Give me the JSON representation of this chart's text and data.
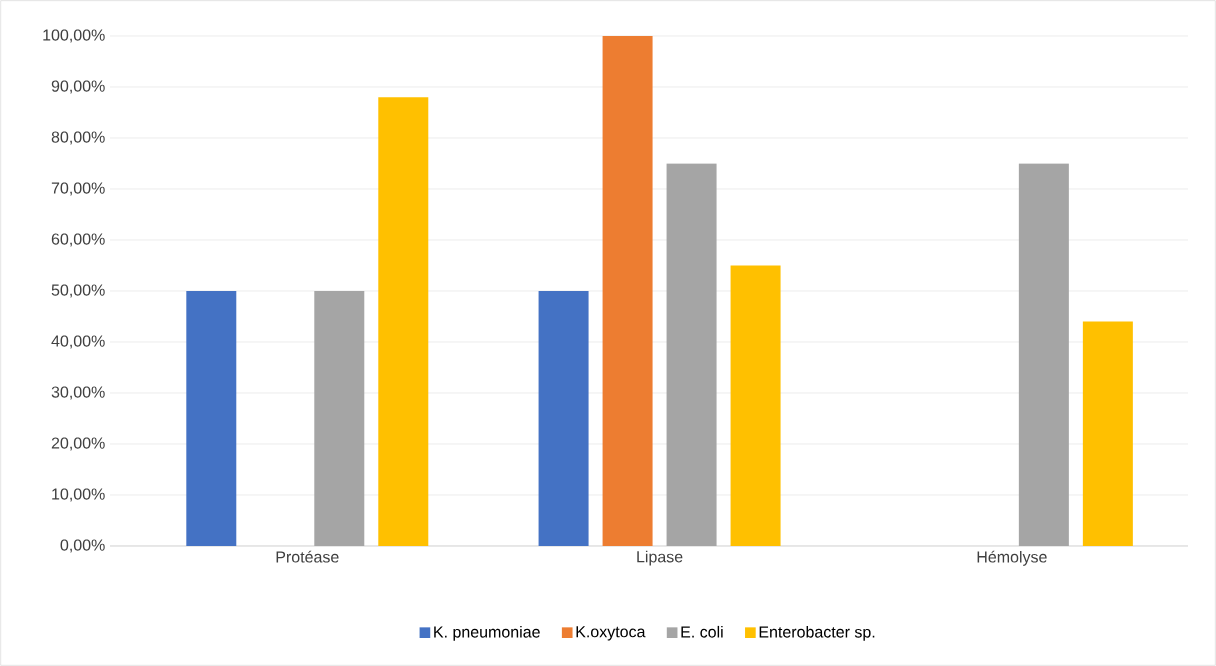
{
  "chart_data": {
    "type": "bar",
    "categories": [
      "Protéase",
      "Lipase",
      "Hémolyse"
    ],
    "series": [
      {
        "name": "K. pneumoniae",
        "color": "#4472c4",
        "values": [
          50,
          50,
          0
        ]
      },
      {
        "name": "K.oxytoca",
        "color": "#ed7d31",
        "values": [
          0,
          100,
          0
        ]
      },
      {
        "name": "E. coli",
        "color": "#a5a5a5",
        "values": [
          50,
          75,
          75
        ]
      },
      {
        "name": "Enterobacter sp.",
        "color": "#ffc000",
        "values": [
          88,
          55,
          44
        ]
      }
    ],
    "ylim": [
      0,
      100
    ],
    "yticks": [
      {
        "value": 0,
        "label": "0,00%"
      },
      {
        "value": 10,
        "label": "10,00%"
      },
      {
        "value": 20,
        "label": "20,00%"
      },
      {
        "value": 30,
        "label": "30,00%"
      },
      {
        "value": 40,
        "label": "40,00%"
      },
      {
        "value": 50,
        "label": "50,00%"
      },
      {
        "value": 60,
        "label": "60,00%"
      },
      {
        "value": 70,
        "label": "70,00%"
      },
      {
        "value": 80,
        "label": "80,00%"
      },
      {
        "value": 90,
        "label": "90,00%"
      },
      {
        "value": 100,
        "label": "100,00%"
      }
    ],
    "grid": "y",
    "legend": "bottom"
  }
}
